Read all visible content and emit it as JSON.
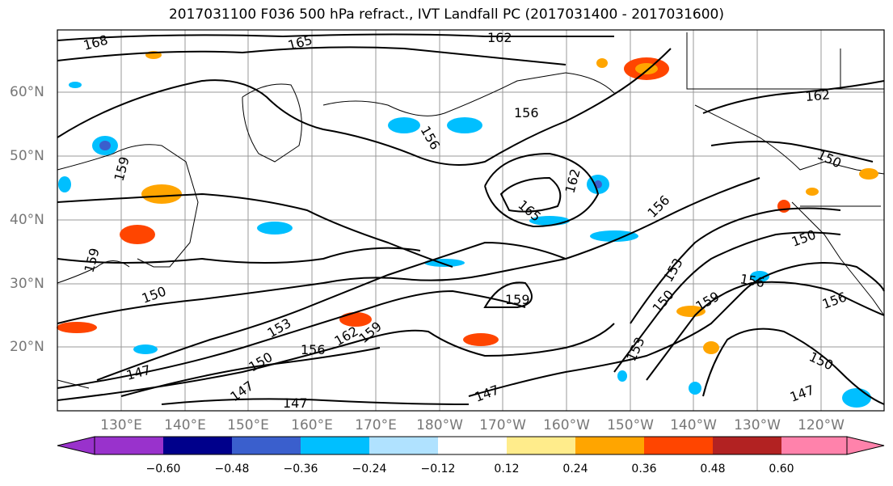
{
  "title": "2017031100 F036 500 hPa refract., IVT Landfall PC (2017031400 - 2017031600)",
  "lat_labels": [
    "60°N",
    "50°N",
    "40°N",
    "30°N",
    "20°N"
  ],
  "lon_labels": [
    "130°E",
    "140°E",
    "150°E",
    "160°E",
    "170°E",
    "180°W",
    "170°W",
    "160°W",
    "150°W",
    "140°W",
    "130°W",
    "120°W"
  ],
  "contour_labels": [
    "168",
    "165",
    "162",
    "156",
    "156",
    "162",
    "165",
    "156",
    "159",
    "150",
    "159",
    "150",
    "153",
    "156",
    "156",
    "162",
    "159",
    "153",
    "147",
    "147",
    "150",
    "147",
    "147",
    "159",
    "150",
    "153",
    "156",
    "162",
    "150",
    "150",
    "147",
    "159"
  ],
  "colorbar": {
    "ticks": [
      "−0.60",
      "−0.48",
      "−0.36",
      "−0.24",
      "−0.12",
      "0.12",
      "0.24",
      "0.36",
      "0.48",
      "0.60"
    ],
    "colors": [
      "#9932cc",
      "#00008b",
      "#3a5fcd",
      "#00bfff",
      "#b0e2ff",
      "#ffffff",
      "#ffec8b",
      "#ffa500",
      "#ff4500",
      "#b22222",
      "#ff82ab"
    ]
  }
}
